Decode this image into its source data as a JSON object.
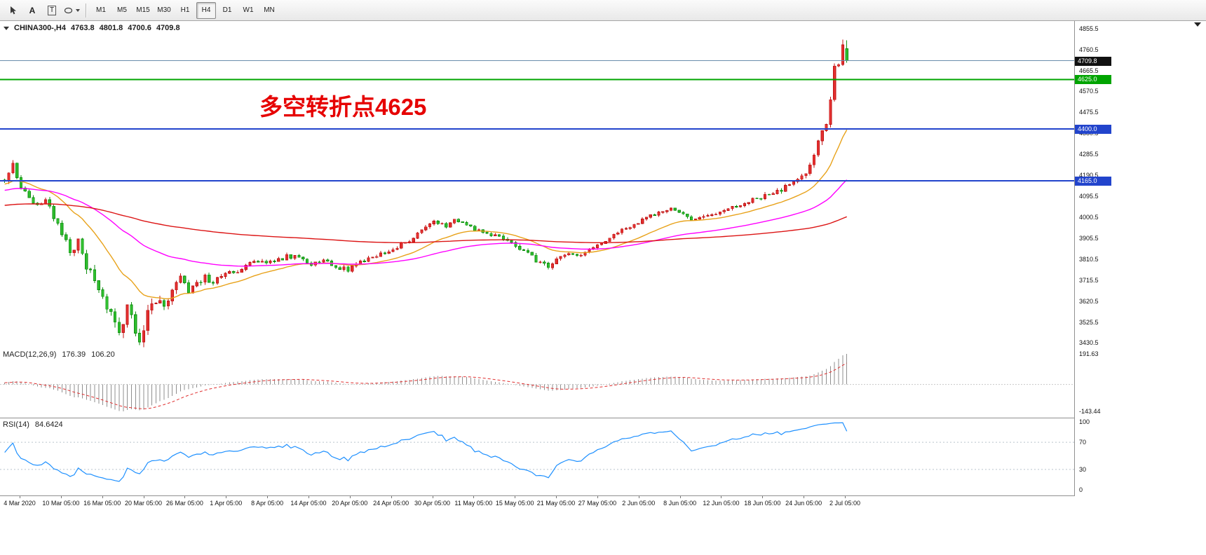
{
  "toolbar": {
    "text_tool_label": "A",
    "textbox_tool_label": "T",
    "timeframes": [
      "M1",
      "M5",
      "M15",
      "M30",
      "H1",
      "H4",
      "D1",
      "W1",
      "MN"
    ],
    "active_timeframe": "H4"
  },
  "chart_header": {
    "symbol": "CHINA300-,H4",
    "open": "4763.8",
    "high": "4801.8",
    "low": "4700.6",
    "close": "4709.8"
  },
  "annotation": {
    "text": "多空转折点4625",
    "color": "#e60000"
  },
  "macd_panel": {
    "name": "MACD(12,26,9)",
    "value_main": "176.39",
    "value_signal": "106.20",
    "scale_top": "191.63",
    "scale_bottom": "-143.44"
  },
  "rsi_panel": {
    "name": "RSI(14)",
    "value": "84.6424",
    "ticks": [
      "100",
      "70",
      "30",
      "0"
    ]
  },
  "chart_data": {
    "type": "candlestick",
    "symbol": "CHINA300-",
    "timeframe": "H4",
    "price_axis": {
      "ticks": [
        "4855.5",
        "4760.5",
        "4665.5",
        "4570.5",
        "4475.5",
        "4380.5",
        "4285.5",
        "4190.5",
        "4095.5",
        "4000.5",
        "3905.5",
        "3810.5",
        "3715.5",
        "3620.5",
        "3525.5",
        "3430.5"
      ],
      "top_price": 4883,
      "bottom_price": 3413
    },
    "time_labels": [
      "4 Mar 2020",
      "10 Mar 05:00",
      "16 Mar 05:00",
      "20 Mar 05:00",
      "26 Mar 05:00",
      "1 Apr 05:00",
      "8 Apr 05:00",
      "14 Apr 05:00",
      "20 Apr 05:00",
      "24 Apr 05:00",
      "30 Apr 05:00",
      "11 May 05:00",
      "15 May 05:00",
      "21 May 05:00",
      "27 May 05:00",
      "2 Jun 05:00",
      "8 Jun 05:00",
      "12 Jun 05:00",
      "18 Jun 05:00",
      "24 Jun 05:00",
      "2 Jul 05:00"
    ],
    "levels": [
      {
        "price": 4709.8,
        "label": "4709.8",
        "kind": "last-price",
        "color": "#111111",
        "line": "#6a8dad"
      },
      {
        "price": 4625.0,
        "label": "4625.0",
        "kind": "hline",
        "color": "#00a400",
        "line": "#00a400"
      },
      {
        "price": 4400.0,
        "label": "4400.0",
        "kind": "hline",
        "color": "#2244cc",
        "line": "#2244cc"
      },
      {
        "price": 4165.0,
        "label": "4165.0",
        "kind": "hline",
        "color": "#2244cc",
        "line": "#2244cc"
      }
    ],
    "last_bar": {
      "open": 4763.8,
      "high": 4801.8,
      "low": 4700.6,
      "close": 4709.8
    },
    "anchors": [
      [
        0,
        4165,
        26
      ],
      [
        2,
        4240,
        32
      ],
      [
        4,
        4140,
        30
      ],
      [
        6,
        4090,
        26
      ],
      [
        8,
        4050,
        26
      ],
      [
        10,
        4080,
        26
      ],
      [
        12,
        4010,
        32
      ],
      [
        14,
        3940,
        42
      ],
      [
        16,
        3850,
        46
      ],
      [
        18,
        3890,
        42
      ],
      [
        20,
        3780,
        46
      ],
      [
        23,
        3680,
        48
      ],
      [
        26,
        3570,
        50
      ],
      [
        28,
        3470,
        52
      ],
      [
        30,
        3590,
        55
      ],
      [
        32,
        3490,
        50
      ],
      [
        33,
        3445,
        46
      ],
      [
        35,
        3570,
        50
      ],
      [
        37,
        3630,
        44
      ],
      [
        39,
        3580,
        40
      ],
      [
        41,
        3690,
        40
      ],
      [
        43,
        3730,
        36
      ],
      [
        45,
        3650,
        34
      ],
      [
        47,
        3700,
        30
      ],
      [
        49,
        3730,
        28
      ],
      [
        51,
        3700,
        26
      ],
      [
        54,
        3750,
        24
      ],
      [
        57,
        3755,
        22
      ],
      [
        60,
        3785,
        22
      ],
      [
        63,
        3805,
        20
      ],
      [
        66,
        3795,
        20
      ],
      [
        69,
        3825,
        20
      ],
      [
        72,
        3815,
        20
      ],
      [
        75,
        3790,
        20
      ],
      [
        78,
        3805,
        18
      ],
      [
        81,
        3775,
        20
      ],
      [
        84,
        3765,
        20
      ],
      [
        87,
        3795,
        18
      ],
      [
        90,
        3825,
        18
      ],
      [
        93,
        3840,
        18
      ],
      [
        96,
        3865,
        18
      ],
      [
        99,
        3895,
        18
      ],
      [
        102,
        3945,
        20
      ],
      [
        105,
        3985,
        20
      ],
      [
        108,
        3955,
        18
      ],
      [
        110,
        3990,
        18
      ],
      [
        112,
        3980,
        18
      ],
      [
        115,
        3945,
        18
      ],
      [
        118,
        3930,
        18
      ],
      [
        121,
        3915,
        20
      ],
      [
        124,
        3880,
        20
      ],
      [
        127,
        3850,
        20
      ],
      [
        130,
        3805,
        22
      ],
      [
        133,
        3775,
        24
      ],
      [
        136,
        3815,
        20
      ],
      [
        139,
        3840,
        18
      ],
      [
        141,
        3825,
        18
      ],
      [
        143,
        3850,
        18
      ],
      [
        146,
        3880,
        18
      ],
      [
        149,
        3920,
        18
      ],
      [
        151,
        3945,
        18
      ],
      [
        153,
        3960,
        18
      ],
      [
        156,
        3990,
        18
      ],
      [
        159,
        4010,
        18
      ],
      [
        161,
        4030,
        18
      ],
      [
        163,
        4045,
        18
      ],
      [
        166,
        4010,
        18
      ],
      [
        168,
        3985,
        18
      ],
      [
        170,
        4000,
        18
      ],
      [
        173,
        4015,
        18
      ],
      [
        176,
        4030,
        18
      ],
      [
        179,
        4055,
        18
      ],
      [
        182,
        4075,
        18
      ],
      [
        184,
        4085,
        18
      ],
      [
        187,
        4105,
        20
      ],
      [
        190,
        4125,
        20
      ],
      [
        192,
        4145,
        22
      ],
      [
        194,
        4165,
        24
      ],
      [
        196,
        4210,
        28
      ],
      [
        198,
        4290,
        34
      ],
      [
        200,
        4390,
        40
      ],
      [
        201,
        4440,
        40
      ],
      [
        202,
        4540,
        44
      ],
      [
        203,
        4672,
        40
      ],
      [
        204,
        4692,
        28
      ],
      [
        205,
        4781,
        22
      ],
      [
        206,
        4709.8,
        0
      ]
    ],
    "prehistory": {
      "bars": 150,
      "start": 3950,
      "end": 4165,
      "noise": 40
    },
    "moving_averages": [
      {
        "type": "ema",
        "period": 20,
        "color": "#e8a21a"
      },
      {
        "type": "ema",
        "period": 60,
        "color": "#ff00ff"
      },
      {
        "type": "ema",
        "period": 200,
        "color": "#dc1414"
      }
    ],
    "candle_colors": {
      "bull": "#c01414",
      "bull_fill": "#e43030",
      "bear": "#0f8f0f",
      "bear_fill": "#30c030"
    },
    "indicators": [
      {
        "name": "MACD",
        "params": [
          12,
          26,
          9
        ],
        "display": [
          176.39,
          106.2
        ],
        "scale": [
          -143.44,
          191.63
        ],
        "histogram_color": "#8f8f8f",
        "signal_color": "#e03030"
      },
      {
        "name": "RSI",
        "params": [
          14
        ],
        "display": 84.6424,
        "levels": [
          30,
          70
        ],
        "scale": [
          0,
          100
        ],
        "color": "#1e90ff"
      }
    ]
  }
}
